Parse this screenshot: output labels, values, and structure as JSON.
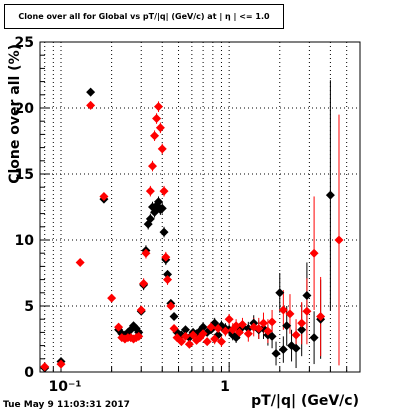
{
  "title": "Clone  over all for Global vs pT/|q| (GeV/c) at |  η  | <= 1.0",
  "timestamp": "Tue May  9 11:03:31 2017",
  "chart_data": {
    "type": "scatter",
    "title": "Clone  over all for Global vs pT/|q| (GeV/c) at |  η  | <= 1.0",
    "xlabel": "pT/|q| (GeV/c)",
    "ylabel": "Clone  over all (%)",
    "x_scale": "log",
    "xlim": [
      0.075,
      6.0
    ],
    "ylim": [
      0,
      25
    ],
    "x_tick_labels": [
      "10⁻¹",
      "1"
    ],
    "y_tick_labels": [
      "0",
      "5",
      "10",
      "15",
      "20",
      "25"
    ],
    "grid": true,
    "series": [
      {
        "color": "#000000",
        "points": [
          [
            0.08,
            0.3
          ],
          [
            0.1,
            0.8
          ],
          [
            0.15,
            21.2
          ],
          [
            0.18,
            13.1
          ],
          [
            0.22,
            3.2
          ],
          [
            0.23,
            2.9
          ],
          [
            0.24,
            2.8
          ],
          [
            0.25,
            3.0
          ],
          [
            0.26,
            3.2
          ],
          [
            0.27,
            3.5
          ],
          [
            0.28,
            3.3
          ],
          [
            0.29,
            3.0
          ],
          [
            0.3,
            4.6
          ],
          [
            0.31,
            6.6
          ],
          [
            0.32,
            9.2
          ],
          [
            0.33,
            11.2
          ],
          [
            0.34,
            11.6
          ],
          [
            0.35,
            12.5
          ],
          [
            0.36,
            12.1
          ],
          [
            0.37,
            12.6
          ],
          [
            0.38,
            12.9
          ],
          [
            0.39,
            12.3
          ],
          [
            0.4,
            12.4
          ],
          [
            0.41,
            10.6
          ],
          [
            0.42,
            8.5
          ],
          [
            0.43,
            7.4
          ],
          [
            0.45,
            5.2
          ],
          [
            0.47,
            4.2
          ],
          [
            0.49,
            3.0
          ],
          [
            0.52,
            2.8
          ],
          [
            0.55,
            3.2
          ],
          [
            0.58,
            2.6
          ],
          [
            0.61,
            3.0
          ],
          [
            0.64,
            2.9
          ],
          [
            0.67,
            3.1
          ],
          [
            0.7,
            3.4
          ],
          [
            0.74,
            3.0
          ],
          [
            0.78,
            3.2
          ],
          [
            0.82,
            3.7
          ],
          [
            0.86,
            2.8
          ],
          [
            0.9,
            3.5
          ],
          [
            0.95,
            3.3
          ],
          [
            1.0,
            3.2
          ],
          [
            1.05,
            2.8
          ],
          [
            1.1,
            2.6
          ],
          [
            1.15,
            3.3
          ],
          [
            1.2,
            3.4
          ],
          [
            1.3,
            3.3
          ],
          [
            1.4,
            3.7
          ],
          [
            1.5,
            3.2
          ],
          [
            1.6,
            3.3
          ],
          [
            1.7,
            2.8
          ],
          [
            1.8,
            2.7
          ],
          [
            1.9,
            1.4
          ],
          [
            2.0,
            6.0
          ],
          [
            2.1,
            1.7
          ],
          [
            2.2,
            3.5
          ],
          [
            2.35,
            2.0
          ],
          [
            2.5,
            1.8
          ],
          [
            2.7,
            3.2
          ],
          [
            2.9,
            5.8
          ],
          [
            3.2,
            2.6
          ],
          [
            3.5,
            4.0
          ],
          [
            4.0,
            13.4
          ]
        ],
        "errors": [
          0.1,
          0.2,
          0.3,
          0.3,
          0.3,
          0.3,
          0.3,
          0.3,
          0.3,
          0.3,
          0.3,
          0.3,
          0.3,
          0.4,
          0.4,
          0.4,
          0.4,
          0.4,
          0.4,
          0.4,
          0.4,
          0.4,
          0.4,
          0.4,
          0.4,
          0.3,
          0.3,
          0.3,
          0.3,
          0.3,
          0.3,
          0.3,
          0.3,
          0.3,
          0.3,
          0.3,
          0.3,
          0.3,
          0.4,
          0.4,
          0.4,
          0.4,
          0.4,
          0.4,
          0.4,
          0.4,
          0.5,
          0.5,
          0.6,
          0.7,
          0.8,
          0.8,
          0.9,
          0.9,
          1.5,
          1.0,
          1.5,
          1.2,
          1.5,
          2.0,
          2.5,
          2.0,
          3.0,
          8.7
        ]
      },
      {
        "color": "#ff0000",
        "points": [
          [
            0.08,
            0.4
          ],
          [
            0.1,
            0.6
          ],
          [
            0.13,
            8.3
          ],
          [
            0.15,
            20.2
          ],
          [
            0.18,
            13.3
          ],
          [
            0.2,
            5.6
          ],
          [
            0.22,
            3.4
          ],
          [
            0.23,
            2.6
          ],
          [
            0.24,
            2.5
          ],
          [
            0.25,
            2.6
          ],
          [
            0.26,
            2.6
          ],
          [
            0.27,
            2.5
          ],
          [
            0.28,
            2.6
          ],
          [
            0.29,
            2.7
          ],
          [
            0.3,
            4.7
          ],
          [
            0.31,
            6.7
          ],
          [
            0.32,
            9.0
          ],
          [
            0.34,
            13.7
          ],
          [
            0.35,
            15.6
          ],
          [
            0.36,
            17.9
          ],
          [
            0.37,
            19.2
          ],
          [
            0.38,
            20.1
          ],
          [
            0.39,
            18.5
          ],
          [
            0.4,
            16.9
          ],
          [
            0.41,
            13.7
          ],
          [
            0.42,
            8.7
          ],
          [
            0.43,
            7.0
          ],
          [
            0.45,
            5.0
          ],
          [
            0.47,
            3.3
          ],
          [
            0.49,
            2.6
          ],
          [
            0.52,
            2.3
          ],
          [
            0.55,
            2.7
          ],
          [
            0.58,
            2.1
          ],
          [
            0.61,
            2.8
          ],
          [
            0.64,
            2.4
          ],
          [
            0.67,
            2.6
          ],
          [
            0.7,
            2.9
          ],
          [
            0.74,
            2.3
          ],
          [
            0.78,
            3.4
          ],
          [
            0.82,
            2.5
          ],
          [
            0.86,
            3.3
          ],
          [
            0.9,
            2.3
          ],
          [
            0.95,
            3.1
          ],
          [
            1.0,
            4.0
          ],
          [
            1.05,
            3.2
          ],
          [
            1.1,
            3.5
          ],
          [
            1.15,
            3.0
          ],
          [
            1.2,
            3.6
          ],
          [
            1.3,
            2.9
          ],
          [
            1.4,
            3.4
          ],
          [
            1.5,
            3.3
          ],
          [
            1.6,
            3.7
          ],
          [
            1.7,
            3.1
          ],
          [
            1.8,
            3.8
          ],
          [
            2.1,
            4.7
          ],
          [
            2.3,
            4.4
          ],
          [
            2.5,
            2.8
          ],
          [
            2.7,
            3.7
          ],
          [
            2.9,
            4.6
          ],
          [
            3.2,
            9.0
          ],
          [
            3.5,
            4.2
          ],
          [
            4.5,
            10.0
          ]
        ],
        "errors": [
          0.1,
          0.2,
          0.3,
          0.3,
          0.3,
          0.3,
          0.3,
          0.3,
          0.3,
          0.3,
          0.3,
          0.3,
          0.3,
          0.3,
          0.3,
          0.4,
          0.4,
          0.4,
          0.4,
          0.4,
          0.4,
          0.4,
          0.4,
          0.4,
          0.4,
          0.4,
          0.4,
          0.3,
          0.3,
          0.3,
          0.3,
          0.3,
          0.3,
          0.3,
          0.3,
          0.3,
          0.3,
          0.3,
          0.4,
          0.4,
          0.4,
          0.4,
          0.4,
          0.4,
          0.5,
          0.5,
          0.5,
          0.5,
          0.6,
          0.7,
          0.8,
          0.8,
          0.9,
          0.9,
          1.5,
          1.5,
          1.2,
          1.6,
          2.5,
          4.3,
          3.0,
          9.5
        ]
      }
    ]
  }
}
